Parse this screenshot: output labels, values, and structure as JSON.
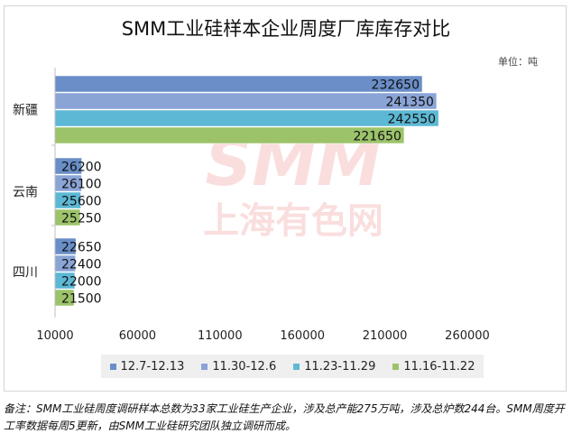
{
  "chart_data": {
    "type": "bar",
    "orientation": "horizontal",
    "title": "SMM工业硅样本企业周度厂库库存对比",
    "unit_label": "单位：吨",
    "categories": [
      "新疆",
      "云南",
      "四川"
    ],
    "series": [
      {
        "name": "12.7-12.13",
        "color": "#6a8ec8",
        "values": [
          232650,
          26200,
          22650
        ]
      },
      {
        "name": "11.30-12.6",
        "color": "#8aa4d6",
        "values": [
          241350,
          26100,
          22400
        ]
      },
      {
        "name": "11.23-11.29",
        "color": "#5cb8d4",
        "values": [
          242550,
          25600,
          22000
        ]
      },
      {
        "name": "11.16-11.22",
        "color": "#9cc36a",
        "values": [
          221650,
          25250,
          21500
        ]
      }
    ],
    "xlim": [
      10000,
      260000
    ],
    "xticks": [
      10000,
      60000,
      110000,
      160000,
      210000,
      260000
    ],
    "legend_position": "bottom",
    "grid": false
  },
  "watermark": {
    "latin": "SMM",
    "chinese": "上海有色网",
    "color": "#e23b3b"
  },
  "footnote": "备注：SMM工业硅周度调研样本总数为33家工业硅生产企业，涉及总产能275万吨，涉及总炉数244台。SMM周度开工率数据每周5更新，由SMM工业硅研究团队独立调研而成。"
}
